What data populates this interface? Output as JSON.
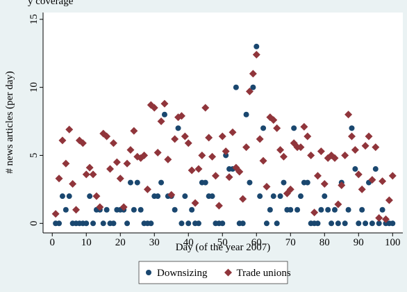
{
  "chart_data": {
    "type": "scatter",
    "title": "y coverage",
    "x_label": "Day (of the year 2007)",
    "y_label": "# news articles (per day)",
    "x": [
      1,
      2,
      3,
      4,
      5,
      6,
      7,
      8,
      9,
      10,
      11,
      12,
      13,
      14,
      15,
      16,
      17,
      18,
      19,
      20,
      21,
      22,
      23,
      24,
      25,
      26,
      27,
      28,
      29,
      30,
      31,
      32,
      33,
      34,
      35,
      36,
      37,
      38,
      39,
      40,
      41,
      42,
      43,
      44,
      45,
      46,
      47,
      48,
      49,
      50,
      51,
      52,
      53,
      54,
      55,
      56,
      57,
      58,
      59,
      60,
      61,
      62,
      63,
      64,
      65,
      66,
      67,
      68,
      69,
      70,
      71,
      72,
      73,
      74,
      75,
      76,
      77,
      78,
      79,
      80,
      81,
      82,
      83,
      84,
      85,
      86,
      87,
      88,
      89,
      90,
      91,
      92,
      93,
      94,
      95,
      96,
      97,
      98,
      99,
      100
    ],
    "series": [
      {
        "name": "Downsizing",
        "color": "#1a476f",
        "marker": "circle",
        "values": [
          0,
          0,
          2,
          1,
          2,
          0,
          0,
          0,
          0,
          0,
          2,
          0,
          1,
          1,
          0,
          1,
          0,
          0,
          1,
          1,
          1,
          0,
          3,
          1,
          3,
          1,
          0,
          0,
          0,
          2,
          2,
          3,
          8,
          2,
          2,
          1,
          7,
          0,
          2,
          0,
          1,
          0,
          0,
          3,
          3,
          2,
          2,
          0,
          0,
          0,
          5,
          4,
          4,
          10,
          0,
          0,
          8,
          3,
          10,
          13,
          2,
          7,
          0,
          1,
          2,
          0,
          2,
          3,
          1,
          1,
          7,
          1,
          2,
          3,
          3,
          0,
          0,
          0,
          1,
          2,
          1,
          0,
          1,
          0,
          3,
          0,
          1,
          7,
          4,
          0,
          1,
          0,
          3,
          0,
          4,
          0,
          1,
          0,
          0,
          0
        ]
      },
      {
        "name": "Trade unions",
        "color": "#90353b",
        "marker": "diamond",
        "values": [
          0.7,
          3.3,
          6.1,
          4.4,
          6.9,
          2.9,
          1.0,
          6.1,
          5.9,
          3.6,
          4.1,
          3.6,
          2.0,
          1.2,
          6.6,
          6.4,
          4.0,
          5.9,
          4.5,
          3.3,
          1.2,
          4.4,
          5.4,
          6.8,
          4.9,
          4.8,
          5.0,
          2.5,
          8.7,
          8.5,
          5.2,
          7.5,
          8.8,
          4.7,
          2.1,
          6.2,
          7.8,
          7.9,
          6.4,
          5.9,
          3.9,
          1.5,
          4.0,
          5.0,
          8.5,
          6.3,
          4.9,
          3.5,
          1.3,
          6.4,
          5.3,
          3.4,
          6.7,
          4.1,
          3.8,
          1.8,
          5.6,
          9.7,
          11.0,
          12.4,
          6.2,
          4.6,
          2.7,
          7.8,
          7.6,
          7.0,
          5.4,
          4.9,
          2.2,
          2.5,
          5.9,
          5.6,
          5.6,
          7.1,
          6.4,
          5.0,
          0.8,
          3.5,
          5.3,
          2.9,
          4.8,
          5.0,
          4.8,
          1.4,
          2.8,
          5.0,
          8.0,
          6.4,
          5.4,
          3.6,
          2.5,
          5.7,
          6.4,
          3.2,
          5.6,
          0.4,
          3.1,
          0.3,
          1.7,
          3.5
        ]
      }
    ],
    "xlim": [
      -2.7,
      103
    ],
    "ylim": [
      -0.7,
      15.5
    ],
    "xticks": [
      0,
      10,
      20,
      30,
      40,
      50,
      60,
      70,
      80,
      90,
      100
    ],
    "yticks": [
      0,
      5,
      10,
      15
    ],
    "grid": false
  }
}
